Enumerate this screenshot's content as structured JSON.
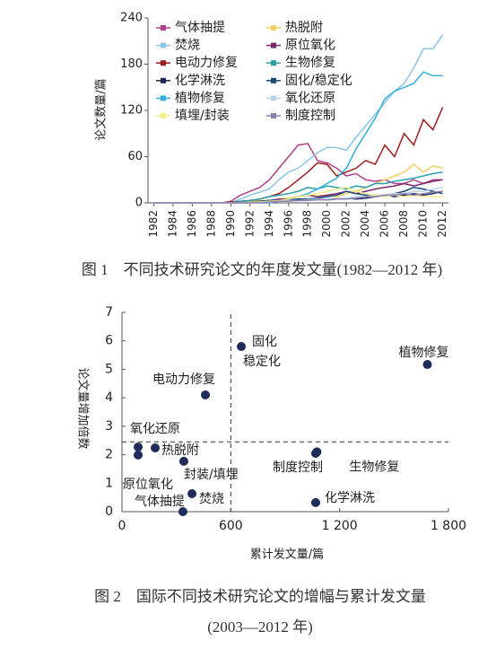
{
  "chart_data": [
    {
      "type": "line",
      "title": "图 1　不同技术研究论文的年度发文量(1982—2012 年)",
      "y_label": "论文数量/篇",
      "x": [
        1982,
        1983,
        1984,
        1985,
        1986,
        1987,
        1988,
        1989,
        1990,
        1991,
        1992,
        1993,
        1994,
        1995,
        1996,
        1997,
        1998,
        1999,
        2000,
        2001,
        2002,
        2003,
        2004,
        2005,
        2006,
        2007,
        2008,
        2009,
        2010,
        2011,
        2012
      ],
      "xlim": [
        1981.4,
        2012.6
      ],
      "xticks": [
        1982,
        1984,
        1986,
        1988,
        1990,
        1992,
        1994,
        1996,
        1998,
        2000,
        2002,
        2004,
        2006,
        2008,
        2010,
        2012
      ],
      "ylim": [
        0,
        240
      ],
      "yticks": [
        0,
        60,
        120,
        180,
        240
      ],
      "series": [
        {
          "name": "气体抽提",
          "color": "#b0418a",
          "values": [
            0,
            0,
            0,
            0,
            0,
            0,
            0,
            0,
            2,
            10,
            15,
            20,
            30,
            45,
            60,
            75,
            77,
            55,
            52,
            45,
            35,
            38,
            30,
            28,
            30,
            25,
            25,
            30,
            25,
            30,
            30
          ]
        },
        {
          "name": "热脱附",
          "color": "#f0d060",
          "values": [
            0,
            0,
            0,
            0,
            0,
            0,
            0,
            0,
            0,
            1,
            2,
            3,
            3,
            5,
            6,
            8,
            10,
            9,
            10,
            8,
            12,
            15,
            20,
            25,
            30,
            35,
            40,
            50,
            40,
            48,
            45
          ]
        },
        {
          "name": "焚烧",
          "color": "#8cc4ea",
          "values": [
            0,
            0,
            0,
            0,
            0,
            0,
            0,
            0,
            0,
            5,
            10,
            14,
            18,
            30,
            40,
            45,
            55,
            65,
            72,
            72,
            68,
            85,
            100,
            115,
            130,
            145,
            155,
            175,
            200,
            200,
            218
          ]
        },
        {
          "name": "原位氧化",
          "color": "#7a2a6a",
          "values": [
            0,
            0,
            0,
            0,
            0,
            0,
            0,
            0,
            0,
            0,
            1,
            2,
            3,
            5,
            5,
            8,
            10,
            8,
            10,
            12,
            15,
            12,
            15,
            18,
            20,
            22,
            25,
            22,
            25,
            28,
            30
          ]
        },
        {
          "name": "电动力修复",
          "color": "#9b1b1b",
          "values": [
            0,
            0,
            0,
            0,
            0,
            0,
            0,
            0,
            1,
            2,
            3,
            5,
            8,
            12,
            20,
            30,
            40,
            52,
            50,
            35,
            40,
            45,
            55,
            50,
            75,
            60,
            90,
            75,
            108,
            95,
            124
          ]
        },
        {
          "name": "生物修复",
          "color": "#2aa0a8",
          "values": [
            0,
            0,
            0,
            0,
            0,
            0,
            0,
            0,
            0,
            2,
            3,
            5,
            8,
            10,
            12,
            15,
            20,
            18,
            22,
            20,
            18,
            22,
            20,
            25,
            25,
            28,
            30,
            32,
            35,
            38,
            40
          ]
        },
        {
          "name": "化学淋洗",
          "color": "#1a2a5a",
          "values": [
            0,
            0,
            0,
            0,
            0,
            0,
            0,
            0,
            0,
            0,
            1,
            1,
            2,
            2,
            3,
            3,
            4,
            5,
            4,
            5,
            6,
            5,
            6,
            8,
            10,
            8,
            10,
            12,
            10,
            12,
            15
          ]
        },
        {
          "name": "固化/稳定化",
          "color": "#1a4a7a",
          "values": [
            0,
            0,
            0,
            0,
            0,
            0,
            0,
            0,
            0,
            0,
            1,
            2,
            3,
            3,
            4,
            5,
            5,
            6,
            8,
            10,
            15,
            12,
            10,
            8,
            10,
            12,
            15,
            20,
            18,
            15,
            12
          ]
        },
        {
          "name": "植物修复",
          "color": "#30b0e0",
          "values": [
            0,
            0,
            0,
            0,
            0,
            0,
            0,
            0,
            0,
            0,
            0,
            0,
            0,
            2,
            5,
            8,
            12,
            18,
            25,
            32,
            45,
            70,
            90,
            110,
            135,
            145,
            150,
            155,
            170,
            165,
            165
          ]
        },
        {
          "name": "氧化还原",
          "color": "#b8d4e6",
          "values": [
            0,
            0,
            0,
            0,
            0,
            0,
            0,
            0,
            0,
            0,
            0,
            1,
            2,
            2,
            3,
            3,
            4,
            5,
            5,
            6,
            6,
            8,
            8,
            10,
            10,
            12,
            12,
            15,
            15,
            18,
            20
          ]
        },
        {
          "name": "填埋/封装",
          "color": "#f2ec8a",
          "values": [
            0,
            0,
            0,
            0,
            0,
            0,
            0,
            0,
            0,
            0,
            1,
            1,
            2,
            3,
            5,
            8,
            10,
            12,
            15,
            18,
            20,
            15,
            12,
            10,
            8,
            10,
            8,
            10,
            8,
            8,
            8
          ]
        },
        {
          "name": "制度控制",
          "color": "#9080b0",
          "values": [
            0,
            0,
            0,
            0,
            0,
            0,
            0,
            0,
            0,
            0,
            0,
            0,
            1,
            2,
            2,
            3,
            3,
            4,
            4,
            5,
            5,
            6,
            8,
            8,
            10,
            10,
            12,
            10,
            12,
            14,
            15
          ]
        }
      ]
    },
    {
      "type": "scatter",
      "title": "图 2　国际不同技术研究论文的增幅与累计发文量",
      "subtitle": "(2003—2012 年)",
      "x_label": "累计发文量/篇",
      "y_label": "论文量增加倍数",
      "xlim": [
        0,
        1800
      ],
      "xticks": [
        0,
        600,
        {
          "value": 1200,
          "label": "1 200"
        },
        {
          "value": 1800,
          "label": "1 800"
        }
      ],
      "ylim": [
        0,
        7
      ],
      "yticks": [
        0,
        1,
        2,
        3,
        4,
        5,
        6,
        7
      ],
      "color": "#1f2d5a",
      "reference_lines": {
        "x": 600,
        "y": 2.45
      },
      "points": [
        {
          "label": "植物修复",
          "x": 1684,
          "y": 5.17
        },
        {
          "label": "固化\n稳定化",
          "x": 658,
          "y": 5.8
        },
        {
          "label": "电动力修复",
          "x": 460,
          "y": 4.1
        },
        {
          "label": "氧化还原",
          "x": 89,
          "y": 2.27
        },
        {
          "label": "原位氧化",
          "x": 89,
          "y": 1.99
        },
        {
          "label": "热脱附",
          "x": 183,
          "y": 2.24
        },
        {
          "label": "封装/填埋",
          "x": 341,
          "y": 1.77
        },
        {
          "label": "焚烧",
          "x": 386,
          "y": 0.63
        },
        {
          "label": "气体抽提",
          "x": 336,
          "y": 0
        },
        {
          "label": "制度控制",
          "x": 1068,
          "y": 2.05
        },
        {
          "label": "生物修复",
          "x": 1075,
          "y": 2.1
        },
        {
          "label": "化学淋洗",
          "x": 1068,
          "y": 0.32
        }
      ]
    }
  ]
}
